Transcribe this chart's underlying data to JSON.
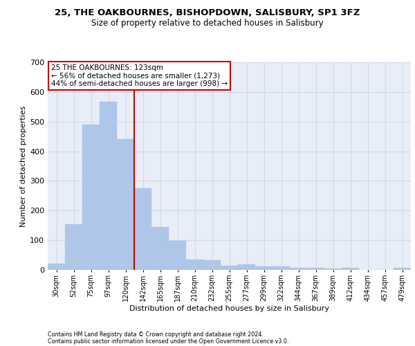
{
  "title1": "25, THE OAKBOURNES, BISHOPDOWN, SALISBURY, SP1 3FZ",
  "title2": "Size of property relative to detached houses in Salisbury",
  "xlabel": "Distribution of detached houses by size in Salisbury",
  "ylabel": "Number of detached properties",
  "footnote1": "Contains HM Land Registry data © Crown copyright and database right 2024.",
  "footnote2": "Contains public sector information licensed under the Open Government Licence v3.0.",
  "annotation_line1": "25 THE OAKBOURNES: 123sqm",
  "annotation_line2": "← 56% of detached houses are smaller (1,273)",
  "annotation_line3": "44% of semi-detached houses are larger (998) →",
  "property_size": 123,
  "bar_categories": [
    "30sqm",
    "52sqm",
    "75sqm",
    "97sqm",
    "120sqm",
    "142sqm",
    "165sqm",
    "187sqm",
    "210sqm",
    "232sqm",
    "255sqm",
    "277sqm",
    "299sqm",
    "322sqm",
    "344sqm",
    "367sqm",
    "389sqm",
    "412sqm",
    "434sqm",
    "457sqm",
    "479sqm"
  ],
  "bar_values": [
    22,
    155,
    490,
    567,
    440,
    275,
    145,
    97,
    35,
    32,
    15,
    18,
    12,
    11,
    8,
    7,
    5,
    7,
    0,
    0,
    7
  ],
  "bar_color": "#aec6e8",
  "bar_edgecolor": "#aec6e8",
  "bar_width": 1.0,
  "vline_color": "#cc0000",
  "grid_color": "#d0d8e8",
  "bg_color": "#e8eef8",
  "ylim": [
    0,
    700
  ],
  "yticks": [
    0,
    100,
    200,
    300,
    400,
    500,
    600,
    700
  ],
  "annotation_box_color": "#cc0000",
  "annotation_box_facecolor": "white",
  "title1_fontsize": 9.5,
  "title2_fontsize": 8.5
}
